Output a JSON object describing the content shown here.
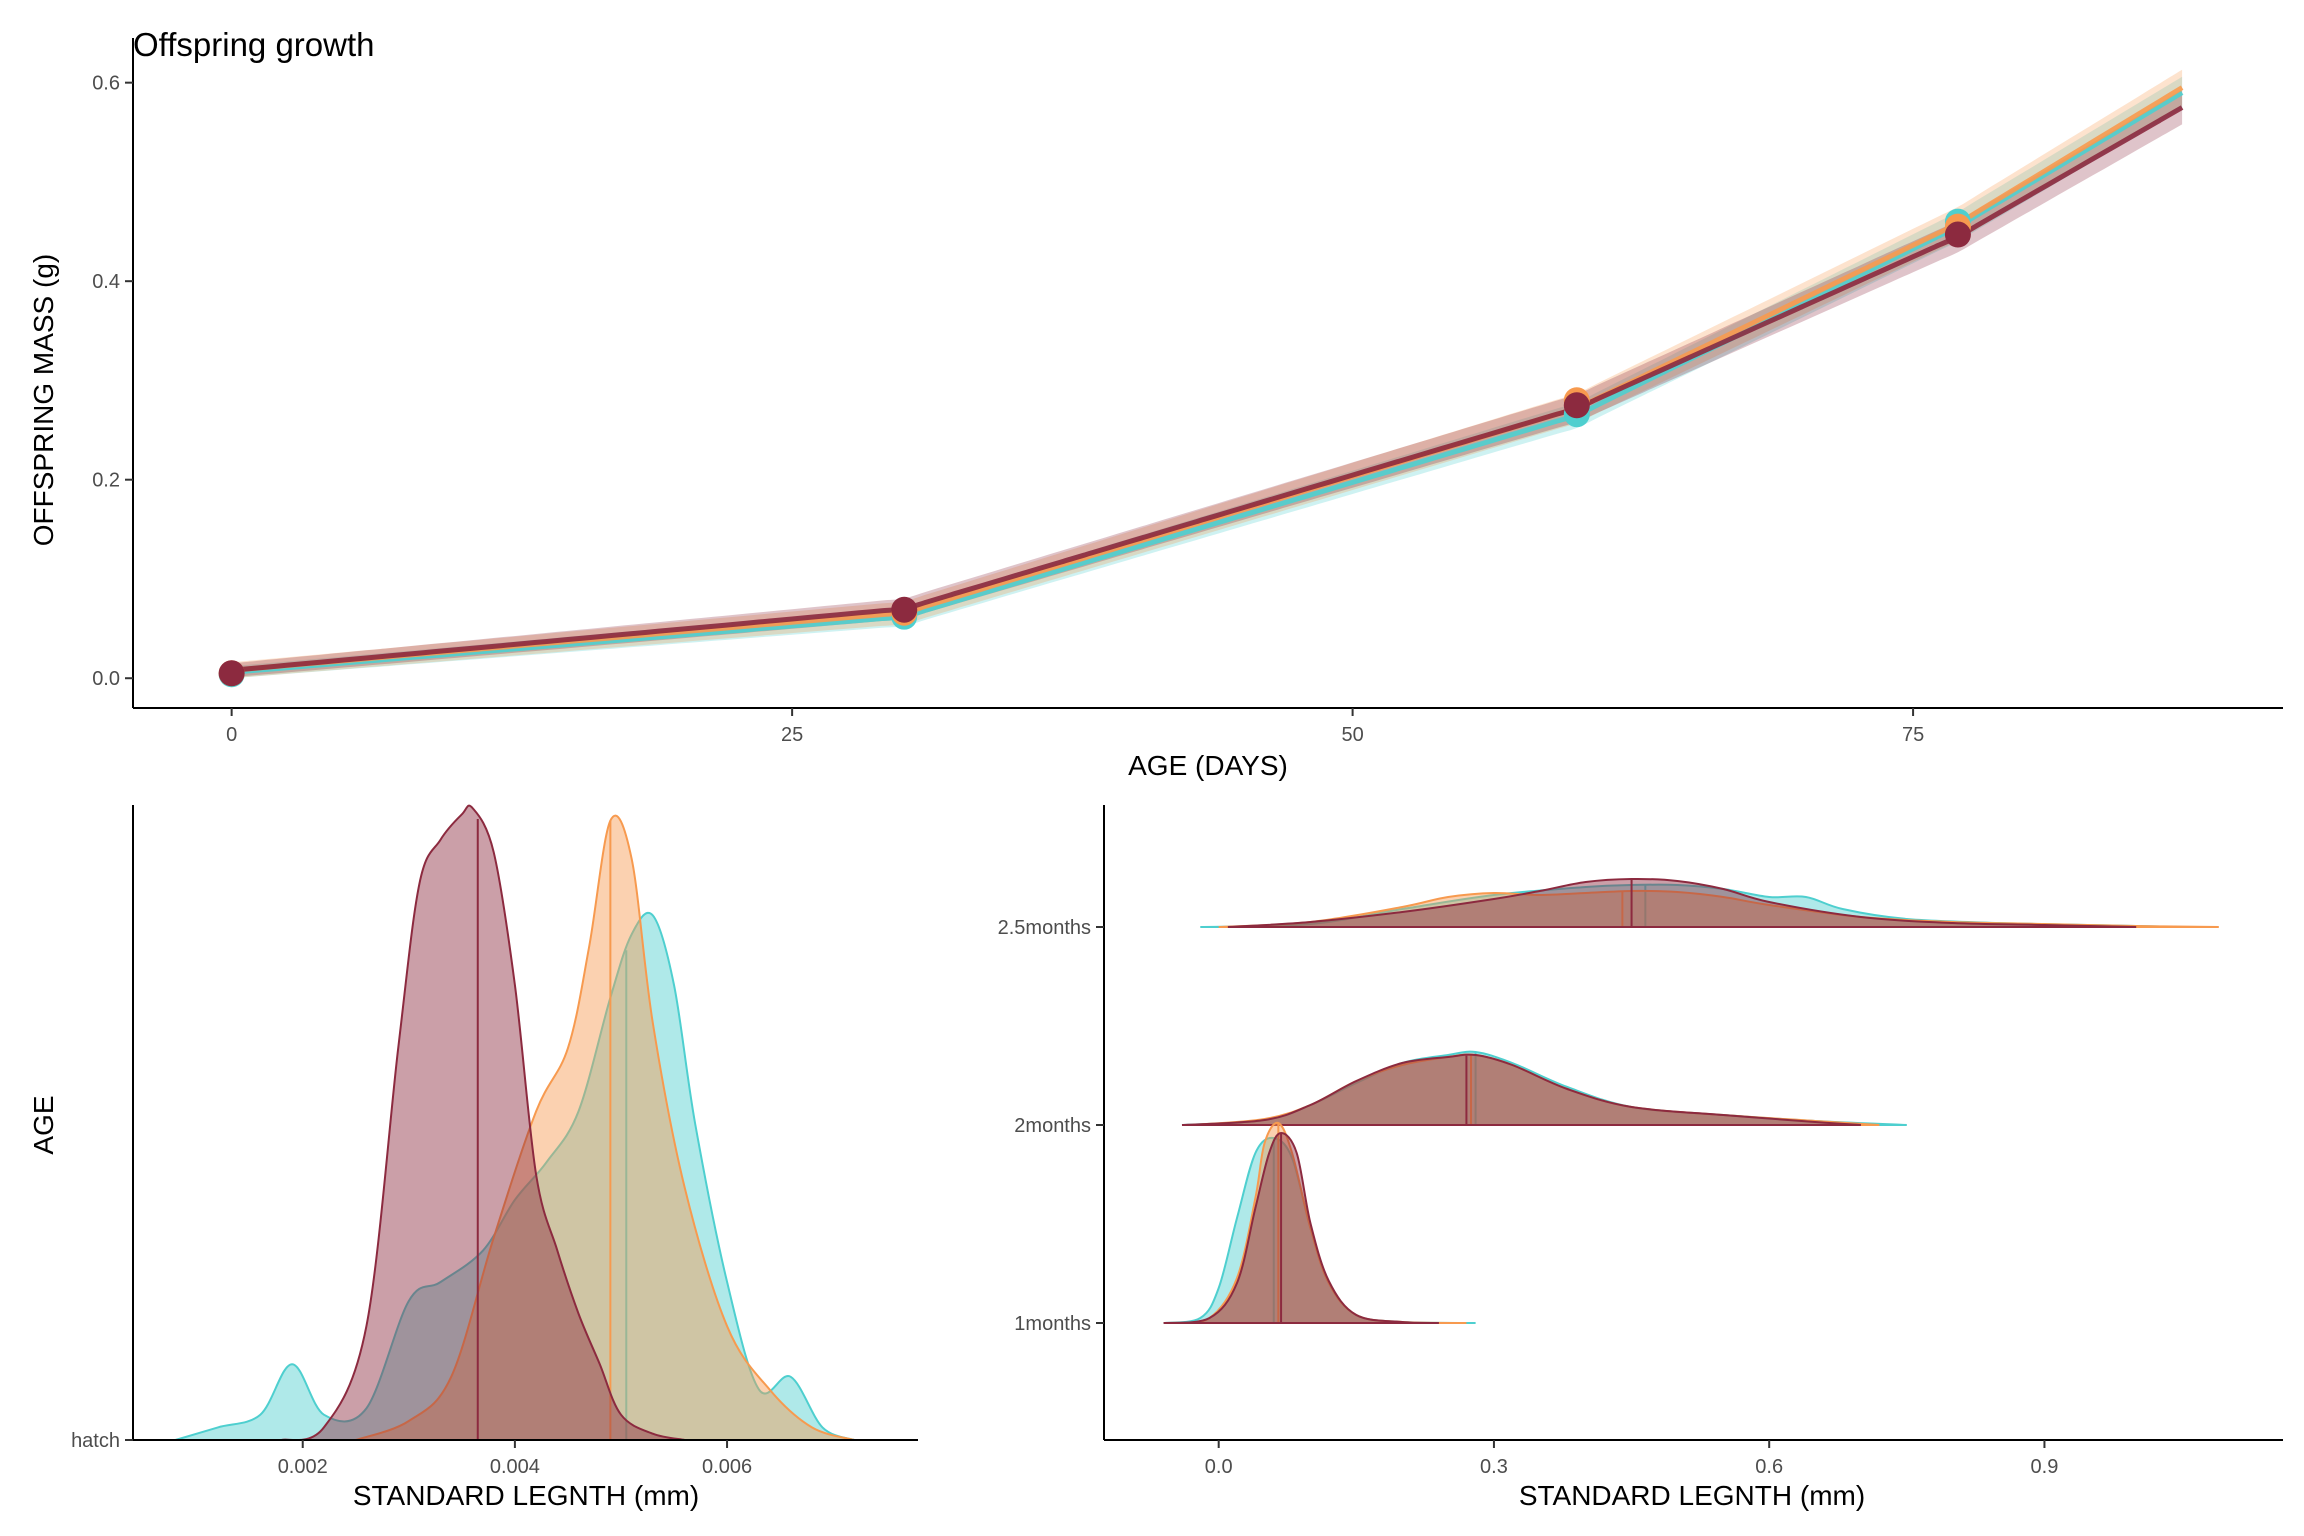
{
  "colors": {
    "teal": "#4ecfcf",
    "orange": "#f79a4f",
    "maroon": "#8c2a3f"
  },
  "chart_data": [
    {
      "type": "line",
      "title": "Offspring growth",
      "xlabel": "AGE (DAYS)",
      "ylabel": "OFFSPRING MASS (g)",
      "xlim": [
        -4.4,
        91.5
      ],
      "ylim": [
        -0.03,
        0.645
      ],
      "xticks": [
        0,
        25,
        50,
        75
      ],
      "yticks": [
        0.0,
        0.2,
        0.4,
        0.6
      ],
      "xtick_labels": [
        "0",
        "25",
        "50",
        "75"
      ],
      "ytick_labels": [
        "0.0",
        "0.2",
        "0.4",
        "0.6"
      ],
      "grid": false,
      "series": [
        {
          "color": "#4ecfcf",
          "fit_x": [
            0,
            30,
            60,
            77,
            87
          ],
          "fit_y": [
            0.006,
            0.062,
            0.265,
            0.455,
            0.59
          ],
          "points": [
            [
              0,
              0.004
            ],
            [
              30,
              0.062
            ],
            [
              60,
              0.266
            ],
            [
              77,
              0.46
            ]
          ]
        },
        {
          "color": "#f79a4f",
          "fit_x": [
            0,
            30,
            60,
            77,
            87
          ],
          "fit_y": [
            0.008,
            0.066,
            0.272,
            0.458,
            0.595
          ],
          "points": [
            [
              0,
              0.005
            ],
            [
              30,
              0.066
            ],
            [
              60,
              0.28
            ],
            [
              77,
              0.455
            ]
          ]
        },
        {
          "color": "#8c2a3f",
          "fit_x": [
            0,
            30,
            60,
            77,
            87
          ],
          "fit_y": [
            0.008,
            0.07,
            0.272,
            0.445,
            0.575
          ],
          "points": [
            [
              0,
              0.005
            ],
            [
              30,
              0.069
            ],
            [
              60,
              0.275
            ],
            [
              77,
              0.447
            ]
          ]
        }
      ]
    },
    {
      "type": "area",
      "subtype": "density",
      "xlabel": "STANDARD LEGNTH (mm)",
      "ylabel": "AGE",
      "xlim": [
        0.0004,
        0.0078
      ],
      "xticks": [
        0.002,
        0.004,
        0.006
      ],
      "xtick_labels": [
        "0.002",
        "0.004",
        "0.006"
      ],
      "categories": [
        "hatch"
      ],
      "series": [
        {
          "color": "#4ecfcf",
          "median": 0.00505,
          "x": [
            0.0008,
            0.0012,
            0.0016,
            0.0019,
            0.0022,
            0.0026,
            0.003,
            0.0033,
            0.0037,
            0.004,
            0.0043,
            0.0046,
            0.0049,
            0.0051,
            0.0053,
            0.0055,
            0.0057,
            0.006,
            0.0063,
            0.0066,
            0.0069,
            0.0072
          ],
          "y": [
            0.0,
            0.02,
            0.04,
            0.12,
            0.04,
            0.05,
            0.22,
            0.25,
            0.3,
            0.38,
            0.44,
            0.52,
            0.7,
            0.8,
            0.83,
            0.72,
            0.5,
            0.25,
            0.08,
            0.1,
            0.02,
            0.0
          ]
        },
        {
          "color": "#f79a4f",
          "median": 0.0049,
          "x": [
            0.0025,
            0.003,
            0.0034,
            0.0038,
            0.0042,
            0.0045,
            0.0047,
            0.0049,
            0.0051,
            0.0053,
            0.0056,
            0.006,
            0.0064,
            0.0068,
            0.0072
          ],
          "y": [
            0.0,
            0.03,
            0.1,
            0.32,
            0.52,
            0.62,
            0.78,
            0.98,
            0.92,
            0.66,
            0.4,
            0.18,
            0.08,
            0.02,
            0.0
          ]
        },
        {
          "color": "#8c2a3f",
          "median": 0.00365,
          "x": [
            0.0018,
            0.0022,
            0.0026,
            0.0029,
            0.0031,
            0.0033,
            0.0035,
            0.0036,
            0.0038,
            0.004,
            0.0042,
            0.0044,
            0.0046,
            0.0048,
            0.005,
            0.0053,
            0.0056
          ],
          "y": [
            0.0,
            0.02,
            0.18,
            0.62,
            0.88,
            0.95,
            0.99,
            1.0,
            0.93,
            0.72,
            0.42,
            0.3,
            0.2,
            0.12,
            0.04,
            0.01,
            0.0
          ]
        }
      ]
    },
    {
      "type": "area",
      "subtype": "ridgeline",
      "xlabel": "STANDARD LEGNTH (mm)",
      "ylabel": "",
      "xlim": [
        -0.125,
        1.16
      ],
      "xticks": [
        0.0,
        0.3,
        0.6,
        0.9
      ],
      "xtick_labels": [
        "0.0",
        "0.3",
        "0.6",
        "0.9"
      ],
      "categories": [
        "1months",
        "2months",
        "2.5months"
      ],
      "series": [
        {
          "color": "#4ecfcf",
          "ridges": [
            {
              "category": "1months",
              "median": 0.06,
              "x": [
                -0.06,
                -0.02,
                0.0,
                0.02,
                0.04,
                0.06,
                0.08,
                0.1,
                0.12,
                0.15,
                0.2,
                0.28
              ],
              "y": [
                0.0,
                0.05,
                0.35,
                1.05,
                1.7,
                1.85,
                1.65,
                0.95,
                0.4,
                0.08,
                0.01,
                0.0
              ]
            },
            {
              "category": "2months",
              "median": 0.28,
              "x": [
                -0.04,
                0.05,
                0.1,
                0.15,
                0.2,
                0.25,
                0.28,
                0.32,
                0.38,
                0.45,
                0.55,
                0.65,
                0.75
              ],
              "y": [
                0.0,
                0.05,
                0.2,
                0.42,
                0.62,
                0.7,
                0.73,
                0.62,
                0.38,
                0.18,
                0.1,
                0.04,
                0.0
              ]
            },
            {
              "category": "2.5months",
              "median": 0.465,
              "x": [
                -0.02,
                0.1,
                0.2,
                0.3,
                0.4,
                0.45,
                0.5,
                0.55,
                0.6,
                0.64,
                0.68,
                0.75,
                0.85,
                0.95,
                1.05
              ],
              "y": [
                0.0,
                0.03,
                0.18,
                0.32,
                0.4,
                0.42,
                0.42,
                0.38,
                0.3,
                0.3,
                0.18,
                0.08,
                0.04,
                0.02,
                0.0
              ]
            }
          ]
        },
        {
          "color": "#f79a4f",
          "ridges": [
            {
              "category": "1months",
              "median": 0.065,
              "x": [
                -0.05,
                -0.01,
                0.02,
                0.04,
                0.05,
                0.065,
                0.08,
                0.1,
                0.12,
                0.15,
                0.2,
                0.27
              ],
              "y": [
                0.0,
                0.05,
                0.45,
                1.25,
                1.8,
                2.0,
                1.7,
                0.95,
                0.4,
                0.08,
                0.01,
                0.0
              ]
            },
            {
              "category": "2months",
              "median": 0.275,
              "x": [
                -0.03,
                0.05,
                0.1,
                0.15,
                0.2,
                0.25,
                0.28,
                0.32,
                0.38,
                0.45,
                0.55,
                0.65,
                0.72
              ],
              "y": [
                0.0,
                0.06,
                0.2,
                0.44,
                0.6,
                0.68,
                0.7,
                0.6,
                0.36,
                0.18,
                0.1,
                0.04,
                0.0
              ]
            },
            {
              "category": "2.5months",
              "median": 0.44,
              "x": [
                0.0,
                0.1,
                0.2,
                0.25,
                0.3,
                0.35,
                0.4,
                0.45,
                0.5,
                0.55,
                0.6,
                0.7,
                0.8,
                0.9,
                1.0,
                1.09
              ],
              "y": [
                0.0,
                0.05,
                0.2,
                0.3,
                0.34,
                0.32,
                0.34,
                0.36,
                0.35,
                0.3,
                0.22,
                0.1,
                0.05,
                0.03,
                0.01,
                0.0
              ]
            }
          ]
        },
        {
          "color": "#8c2a3f",
          "ridges": [
            {
              "category": "1months",
              "median": 0.068,
              "x": [
                -0.06,
                -0.01,
                0.02,
                0.04,
                0.055,
                0.068,
                0.085,
                0.1,
                0.12,
                0.15,
                0.2,
                0.24
              ],
              "y": [
                0.0,
                0.05,
                0.4,
                1.15,
                1.7,
                1.9,
                1.7,
                1.0,
                0.42,
                0.08,
                0.01,
                0.0
              ]
            },
            {
              "category": "2months",
              "median": 0.27,
              "x": [
                -0.04,
                0.05,
                0.1,
                0.15,
                0.2,
                0.25,
                0.28,
                0.32,
                0.38,
                0.45,
                0.55,
                0.65,
                0.7
              ],
              "y": [
                0.0,
                0.05,
                0.2,
                0.44,
                0.62,
                0.68,
                0.7,
                0.6,
                0.36,
                0.18,
                0.1,
                0.03,
                0.0
              ]
            },
            {
              "category": "2.5months",
              "median": 0.45,
              "x": [
                0.01,
                0.1,
                0.2,
                0.3,
                0.35,
                0.4,
                0.45,
                0.5,
                0.55,
                0.6,
                0.7,
                0.8,
                0.9,
                1.0
              ],
              "y": [
                0.0,
                0.05,
                0.15,
                0.28,
                0.36,
                0.45,
                0.48,
                0.46,
                0.38,
                0.25,
                0.1,
                0.04,
                0.02,
                0.0
              ]
            }
          ]
        }
      ]
    }
  ]
}
